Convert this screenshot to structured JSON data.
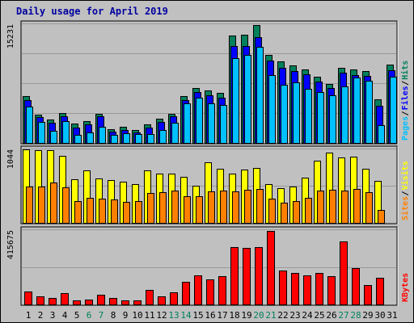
{
  "title": "Daily usage for April 2019",
  "colors": {
    "hits": "#00805c",
    "files": "#0000ff",
    "pages": "#00c0ff",
    "visits": "#ffff00",
    "sites": "#ff8000",
    "kbytes": "#ff0000",
    "weekend_day": "#00805c",
    "weekday": "#000000",
    "panel_bg": "#c0c0c0",
    "grid": "#999999"
  },
  "chart_data": [
    {
      "type": "bar",
      "ymax_label": "15231",
      "ylim": [
        0,
        15231
      ],
      "legend": [
        "Pages",
        "Files",
        "Hits"
      ],
      "categories": [
        "1",
        "2",
        "3",
        "4",
        "5",
        "6",
        "7",
        "8",
        "9",
        "10",
        "11",
        "12",
        "13",
        "14",
        "15",
        "16",
        "17",
        "18",
        "19",
        "20",
        "21",
        "22",
        "23",
        "24",
        "25",
        "26",
        "27",
        "28",
        "29",
        "30",
        "31"
      ],
      "weekend_days": [
        "6",
        "7",
        "13",
        "14",
        "20",
        "21",
        "27",
        "28"
      ],
      "series": [
        {
          "name": "Hits",
          "values": [
            6100,
            3700,
            3000,
            3900,
            2500,
            2800,
            3800,
            1800,
            2100,
            1700,
            2400,
            3100,
            3800,
            6100,
            7100,
            6800,
            6500,
            13900,
            14000,
            15231,
            11400,
            10500,
            10000,
            9500,
            8600,
            7600,
            9700,
            9500,
            9300,
            5600,
            10100
          ]
        },
        {
          "name": "Files",
          "values": [
            5500,
            3300,
            2600,
            3400,
            2000,
            2400,
            3400,
            1500,
            1700,
            1400,
            2000,
            2700,
            3400,
            5500,
            6600,
            6200,
            5800,
            12500,
            12500,
            13700,
            10600,
            9700,
            9300,
            8900,
            7900,
            7100,
            9100,
            8800,
            8700,
            4800,
            9400
          ]
        },
        {
          "name": "Pages",
          "values": [
            4700,
            2700,
            1600,
            2800,
            1000,
            1400,
            2100,
            1000,
            1200,
            1100,
            1100,
            1700,
            2600,
            5100,
            5800,
            5100,
            4900,
            11000,
            11400,
            12400,
            8800,
            7500,
            7800,
            7000,
            6600,
            6200,
            7300,
            8500,
            8000,
            2300,
            8600
          ]
        }
      ]
    },
    {
      "type": "bar",
      "ymax_label": "1044",
      "ylim": [
        0,
        1044
      ],
      "legend": [
        "Sites",
        "Visits"
      ],
      "categories": [
        "1",
        "2",
        "3",
        "4",
        "5",
        "6",
        "7",
        "8",
        "9",
        "10",
        "11",
        "12",
        "13",
        "14",
        "15",
        "16",
        "17",
        "18",
        "19",
        "20",
        "21",
        "22",
        "23",
        "24",
        "25",
        "26",
        "27",
        "28",
        "29",
        "30",
        "31"
      ],
      "series": [
        {
          "name": "Visits",
          "values": [
            1044,
            1035,
            1030,
            955,
            620,
            740,
            630,
            610,
            580,
            545,
            745,
            700,
            700,
            655,
            530,
            865,
            770,
            700,
            760,
            780,
            545,
            490,
            520,
            640,
            880,
            1000,
            925,
            940,
            770,
            600,
            0
          ]
        },
        {
          "name": "Sites",
          "values": [
            520,
            515,
            570,
            500,
            305,
            350,
            345,
            335,
            300,
            305,
            420,
            440,
            455,
            380,
            375,
            445,
            455,
            450,
            470,
            485,
            340,
            290,
            315,
            350,
            455,
            465,
            460,
            480,
            440,
            180,
            0
          ]
        }
      ]
    },
    {
      "type": "bar",
      "ymax_label": "415675",
      "ylim": [
        0,
        415675
      ],
      "legend": [
        "KBytes"
      ],
      "categories": [
        "1",
        "2",
        "3",
        "4",
        "5",
        "6",
        "7",
        "8",
        "9",
        "10",
        "11",
        "12",
        "13",
        "14",
        "15",
        "16",
        "17",
        "18",
        "19",
        "20",
        "21",
        "22",
        "23",
        "24",
        "25",
        "26",
        "27",
        "28",
        "29",
        "30",
        "31"
      ],
      "series": [
        {
          "name": "KBytes",
          "values": [
            75000,
            45000,
            35000,
            65000,
            25000,
            28000,
            55000,
            35000,
            25000,
            25000,
            80000,
            45000,
            70000,
            130000,
            165000,
            140000,
            160000,
            325000,
            320000,
            325000,
            415675,
            190000,
            180000,
            165000,
            180000,
            160000,
            355000,
            205000,
            110000,
            150000,
            0
          ]
        }
      ]
    }
  ]
}
